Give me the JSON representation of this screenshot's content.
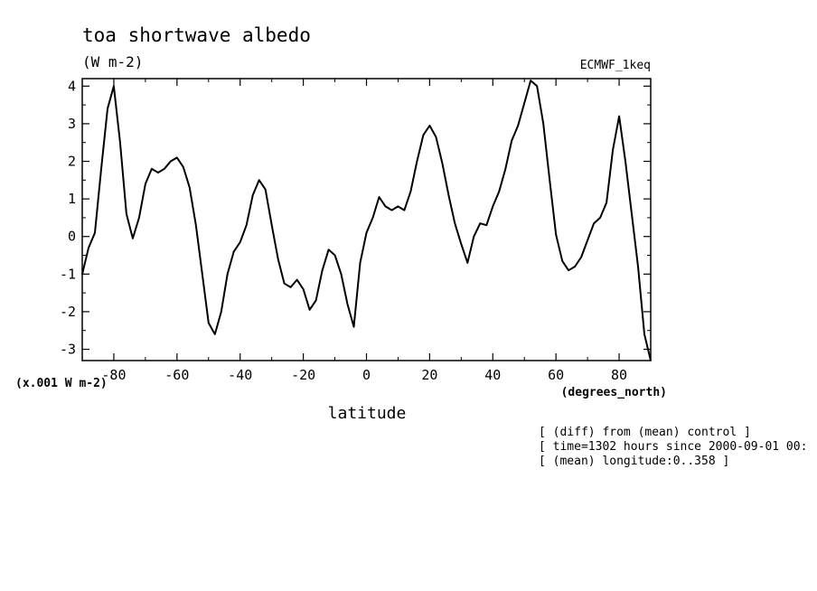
{
  "chart_data": {
    "type": "line",
    "title": "toa shortwave albedo",
    "units": "(W m-2)",
    "dataset": "ECMWF_1keq",
    "scale_note": "(x.001 W m-2)",
    "xlabel": "latitude",
    "xunit": "(degrees_north)",
    "xlim": [
      -90,
      90
    ],
    "ylim": [
      -3.3,
      4.2
    ],
    "xticks": [
      -80,
      -60,
      -40,
      -20,
      0,
      20,
      40,
      60,
      80
    ],
    "yticks": [
      -3,
      -2,
      -1,
      0,
      1,
      2,
      3,
      4
    ],
    "grid": false,
    "series": [
      {
        "x": [
          -90,
          -88,
          -86,
          -84,
          -82,
          -80,
          -78,
          -76,
          -74,
          -72,
          -70,
          -68,
          -66,
          -64,
          -62,
          -60,
          -58,
          -56,
          -54,
          -52,
          -50,
          -48,
          -46,
          -44,
          -42,
          -40,
          -38,
          -36,
          -34,
          -32,
          -30,
          -28,
          -26,
          -24,
          -22,
          -20,
          -18,
          -16,
          -14,
          -12,
          -10,
          -8,
          -6,
          -4,
          -2,
          0,
          2,
          4,
          6,
          8,
          10,
          12,
          14,
          16,
          18,
          20,
          22,
          24,
          26,
          28,
          30,
          32,
          34,
          36,
          38,
          40,
          42,
          44,
          46,
          48,
          50,
          52,
          54,
          56,
          58,
          60,
          62,
          64,
          66,
          68,
          70,
          72,
          74,
          76,
          78,
          80,
          82,
          84,
          86,
          88,
          90
        ],
        "y": [
          -1.0,
          -0.3,
          0.1,
          1.8,
          3.4,
          4.0,
          2.5,
          0.6,
          -0.05,
          0.5,
          1.4,
          1.8,
          1.7,
          1.8,
          2.0,
          2.1,
          1.85,
          1.3,
          0.3,
          -1.0,
          -2.3,
          -2.6,
          -2.0,
          -1.0,
          -0.4,
          -0.15,
          0.3,
          1.1,
          1.5,
          1.25,
          0.3,
          -0.6,
          -1.25,
          -1.35,
          -1.15,
          -1.4,
          -1.95,
          -1.7,
          -0.9,
          -0.35,
          -0.5,
          -1.0,
          -1.8,
          -2.4,
          -0.7,
          0.1,
          0.5,
          1.05,
          0.8,
          0.7,
          0.8,
          0.7,
          1.2,
          2.0,
          2.7,
          2.95,
          2.65,
          1.95,
          1.1,
          0.35,
          -0.2,
          -0.7,
          0.0,
          0.35,
          0.3,
          0.8,
          1.2,
          1.8,
          2.55,
          2.95,
          3.55,
          4.15,
          4.0,
          3.0,
          1.5,
          0.05,
          -0.65,
          -0.9,
          -0.8,
          -0.55,
          -0.1,
          0.35,
          0.5,
          0.9,
          2.3,
          3.2,
          2.0,
          0.6,
          -0.8,
          -2.6,
          -3.3
        ]
      }
    ]
  },
  "annotations": [
    "[ (diff) from (mean) control ]",
    "[ time=1302 hours since 2000-09-01 00:",
    "[ (mean) longitude:0..358 ]"
  ]
}
